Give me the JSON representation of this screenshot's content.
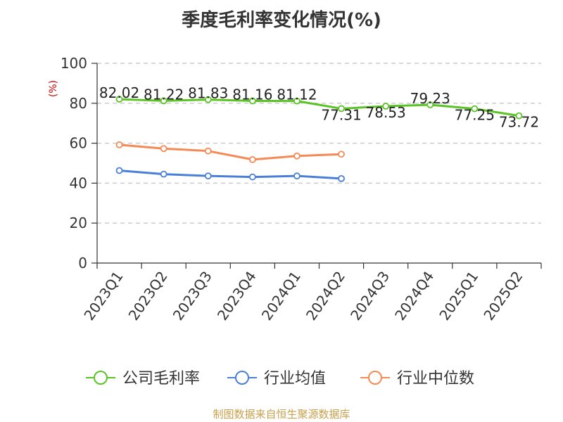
{
  "title": "季度毛利率变化情况(%)",
  "source": "制图数据来自恒生聚源数据库",
  "chart_data": {
    "type": "line",
    "title": "季度毛利率变化情况(%)",
    "ylabel": "(%)",
    "ylim": [
      0,
      100
    ],
    "yticks": [
      0,
      20,
      40,
      60,
      80,
      100
    ],
    "grid": true,
    "legend_position": "bottom",
    "categories": [
      "2023Q1",
      "2023Q2",
      "2023Q3",
      "2023Q4",
      "2024Q1",
      "2024Q2",
      "2024Q3",
      "2024Q4",
      "2025Q1",
      "2025Q2"
    ],
    "series": [
      {
        "name": "公司毛利率",
        "color": "#5bc425",
        "labeled": true,
        "values": [
          82.02,
          81.22,
          81.83,
          81.16,
          81.12,
          77.31,
          78.53,
          79.23,
          77.25,
          73.72
        ],
        "labels": [
          "82.02",
          "81.22",
          "81.83",
          "81.16",
          "81.12",
          "77.31",
          "78.53",
          "79.23",
          "77.25",
          "73.72"
        ]
      },
      {
        "name": "行业均值",
        "color": "#4a7fd8",
        "labeled": false,
        "values": [
          46.3,
          44.5,
          43.6,
          43.1,
          43.6,
          42.3,
          null,
          null,
          null,
          null
        ]
      },
      {
        "name": "行业中位数",
        "color": "#f58a55",
        "labeled": false,
        "values": [
          59.2,
          57.3,
          56.1,
          51.8,
          53.6,
          54.5,
          null,
          null,
          null,
          null
        ]
      }
    ]
  }
}
